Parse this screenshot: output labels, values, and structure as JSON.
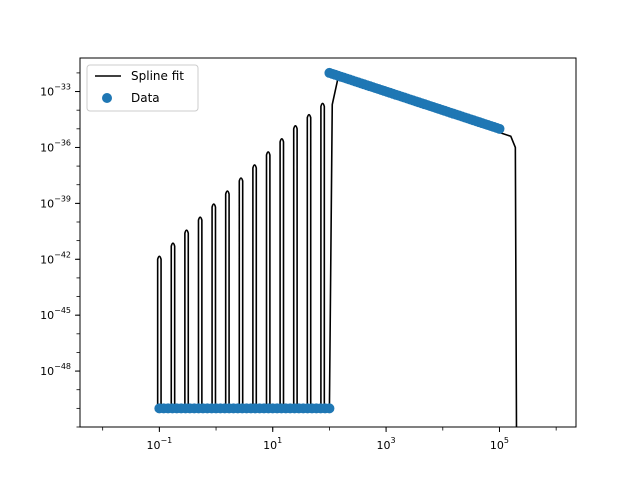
{
  "chart_data": {
    "type": "scatter",
    "title": "",
    "xlabel": "",
    "ylabel": "",
    "xscale": "log",
    "yscale": "log",
    "xlim_log10": [
      -2.4,
      6.35
    ],
    "ylim_log10": [
      -51.0,
      -31.2
    ],
    "grid": false,
    "legend_placement": "top-left",
    "x_ticks": [
      {
        "exp": -1,
        "base": "10",
        "sup": "−1"
      },
      {
        "exp": 1,
        "base": "10",
        "sup": "1"
      },
      {
        "exp": 3,
        "base": "10",
        "sup": "3"
      },
      {
        "exp": 5,
        "base": "10",
        "sup": "5"
      }
    ],
    "y_ticks": [
      {
        "exp": -33,
        "base": "10",
        "sup": "−33"
      },
      {
        "exp": -36,
        "base": "10",
        "sup": "−36"
      },
      {
        "exp": -39,
        "base": "10",
        "sup": "−39"
      },
      {
        "exp": -42,
        "base": "10",
        "sup": "−42"
      },
      {
        "exp": -45,
        "base": "10",
        "sup": "−45"
      },
      {
        "exp": -48,
        "base": "10",
        "sup": "−48"
      }
    ],
    "series": [
      {
        "name": "Spline fit",
        "kind": "line",
        "color": "#000000",
        "peaks_log10": [
          {
            "logx": -1.0,
            "logy": -42.0
          },
          {
            "logx": -0.76,
            "logy": -41.3
          },
          {
            "logx": -0.52,
            "logy": -40.6
          },
          {
            "logx": -0.28,
            "logy": -39.9
          },
          {
            "logx": -0.04,
            "logy": -39.2
          },
          {
            "logx": 0.2,
            "logy": -38.5
          },
          {
            "logx": 0.44,
            "logy": -37.8
          },
          {
            "logx": 0.68,
            "logy": -37.1
          },
          {
            "logx": 0.92,
            "logy": -36.4
          },
          {
            "logx": 1.16,
            "logy": -35.7
          },
          {
            "logx": 1.4,
            "logy": -35.0
          },
          {
            "logx": 1.64,
            "logy": -34.4
          },
          {
            "logx": 1.88,
            "logy": -33.8
          }
        ],
        "segment_log10": [
          {
            "logx": 2.0,
            "logy": -50.0
          },
          {
            "logx": 2.05,
            "logy": -33.7
          },
          {
            "logx": 2.15,
            "logy": -32.3
          },
          {
            "logx": 2.3,
            "logy": -32.2
          },
          {
            "logx": 2.45,
            "logy": -32.35
          },
          {
            "logx": 3.0,
            "logy": -32.9
          },
          {
            "logx": 4.0,
            "logy": -34.0
          },
          {
            "logx": 5.0,
            "logy": -35.2
          },
          {
            "logx": 5.2,
            "logy": -35.4
          },
          {
            "logx": 5.28,
            "logy": -36.0
          },
          {
            "logx": 5.3,
            "logy": -51.0
          }
        ]
      },
      {
        "name": "Data",
        "kind": "scatter",
        "color": "#1f77b4",
        "floor_logy": -50.0,
        "floor_logx_range": [
          -1.0,
          2.0
        ],
        "floor_count": 40,
        "decay_logx_range": [
          2.0,
          5.0
        ],
        "decay_logy_range": [
          -32.0,
          -35.0
        ],
        "decay_count": 60
      }
    ]
  }
}
